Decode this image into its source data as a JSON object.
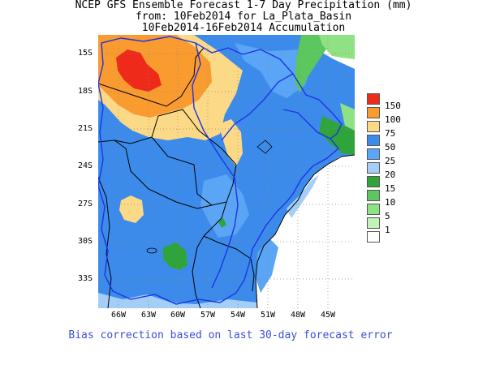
{
  "title": {
    "line1": "NCEP GFS Ensemble Forecast 1-7 Day Precipitation (mm)",
    "line2": "from: 10Feb2014   for La_Plata_Basin",
    "line3": "10Feb2014-16Feb2014 Accumulation"
  },
  "map": {
    "lat_labels": [
      "15S",
      "18S",
      "21S",
      "24S",
      "27S",
      "30S",
      "33S"
    ],
    "lon_labels": [
      "66W",
      "63W",
      "60W",
      "57W",
      "54W",
      "51W",
      "48W",
      "45W"
    ],
    "lat_values": [
      -15,
      -18,
      -21,
      -24,
      -27,
      -30,
      -33
    ],
    "lon_values": [
      -66,
      -63,
      -60,
      -57,
      -54,
      -51,
      -48,
      -45
    ],
    "colors": {
      "ocean": "#ffffff",
      "blue50": "#3c8bea",
      "blue25": "#5aa5f5",
      "blue20": "#a4cdf7",
      "yellow75": "#fbd986",
      "orange100": "#f99b2f",
      "red150": "#ee2b1a",
      "green15": "#2fa43a",
      "green10": "#5bc75e",
      "green5": "#8ee284",
      "green1": "#c2f3b8",
      "basin": "#1e34e6",
      "border": "#000000"
    }
  },
  "legend": {
    "items": [
      {
        "label": "150",
        "color": "#ee2b1a"
      },
      {
        "label": "100",
        "color": "#f99b2f"
      },
      {
        "label": "75",
        "color": "#fbd986"
      },
      {
        "label": "50",
        "color": "#3c8bea"
      },
      {
        "label": "25",
        "color": "#5aa5f5"
      },
      {
        "label": "20",
        "color": "#a4cdf7"
      },
      {
        "label": "15",
        "color": "#2fa43a"
      },
      {
        "label": "10",
        "color": "#5bc75e"
      },
      {
        "label": "5",
        "color": "#8ee284"
      },
      {
        "label": "1",
        "color": "#c2f3b8"
      },
      {
        "label": "",
        "color": "#ffffff"
      }
    ]
  },
  "footer": "Bias correction based on last 30-day forecast error"
}
